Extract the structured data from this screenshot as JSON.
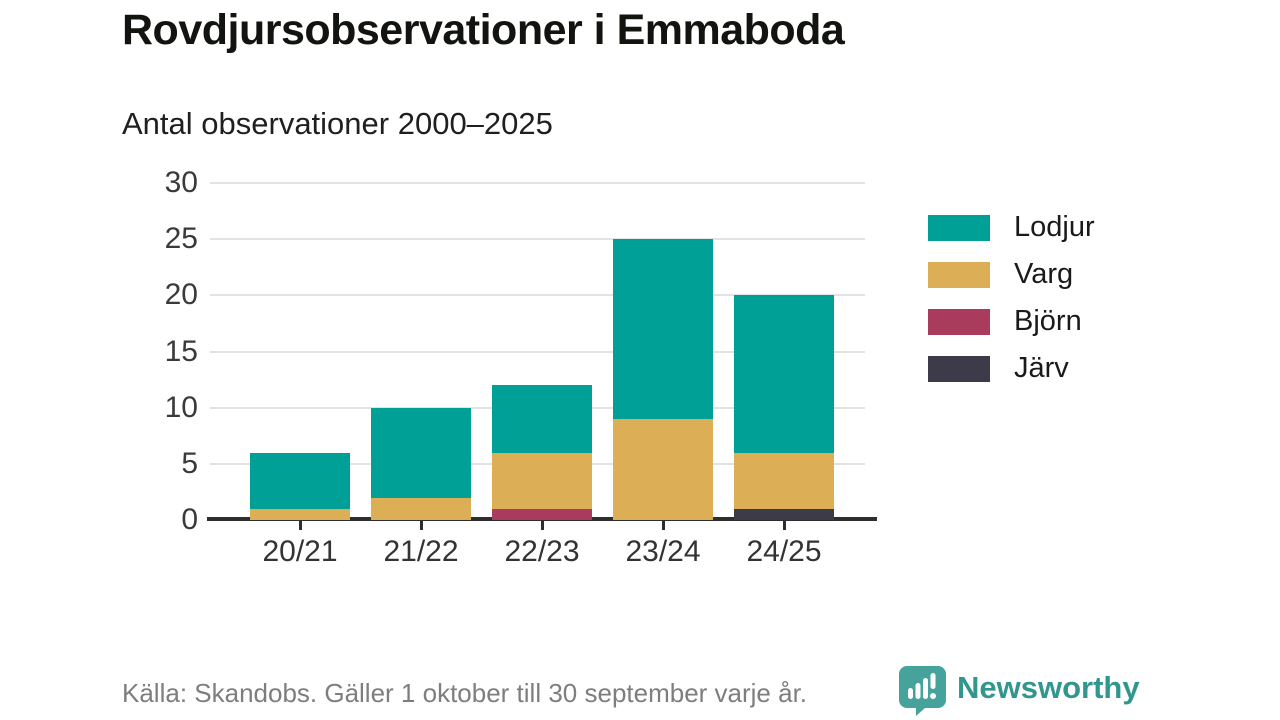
{
  "header": {
    "title": "Rovdjursobservationer i Emmaboda",
    "subtitle": "Antal observationer 2000–2025"
  },
  "chart_data": {
    "type": "bar",
    "stacked": true,
    "title": "Rovdjursobservationer i Emmaboda",
    "subtitle": "Antal observationer 2000–2025",
    "categories": [
      "20/21",
      "21/22",
      "22/23",
      "23/24",
      "24/25"
    ],
    "series": [
      {
        "name": "Lodjur",
        "color": "#00a096",
        "values": [
          5,
          8,
          6,
          16,
          14
        ]
      },
      {
        "name": "Varg",
        "color": "#dcae55",
        "values": [
          1,
          2,
          5,
          9,
          5
        ]
      },
      {
        "name": "Björn",
        "color": "#a93b5c",
        "values": [
          0,
          0,
          1,
          0,
          0
        ]
      },
      {
        "name": "Järv",
        "color": "#3d3a4a",
        "values": [
          0,
          0,
          0,
          0,
          1
        ]
      }
    ],
    "stack_order_bottom_to_top": [
      "Järv",
      "Björn",
      "Varg",
      "Lodjur"
    ],
    "totals": [
      6,
      10,
      12,
      25,
      20
    ],
    "xlabel": "",
    "ylabel": "",
    "ylim": [
      0,
      30
    ],
    "yticks": [
      0,
      5,
      10,
      15,
      20,
      25,
      30
    ],
    "grid": "horizontal",
    "legend_position": "right",
    "axis_color": "#2e2e2e",
    "grid_color": "#e3e3e3"
  },
  "footer": {
    "source": "Källa: Skandobs. Gäller 1 oktober till 30 september varje år.",
    "brand": "Newsworthy",
    "brand_color": "#31968e",
    "brand_icon_color": "#45a39b"
  }
}
